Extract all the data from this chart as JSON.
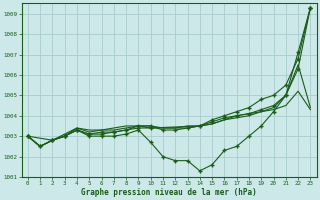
{
  "bg_color": "#cce8e8",
  "grid_color": "#aacccc",
  "line_color": "#1a5c1a",
  "marker_color": "#1a5c1a",
  "xlabel": "Graphe pression niveau de la mer (hPa)",
  "xlabel_color": "#1a5c1a",
  "ylim": [
    1001,
    1009.5
  ],
  "xlim": [
    -0.5,
    23.5
  ],
  "yticks": [
    1001,
    1002,
    1003,
    1004,
    1005,
    1006,
    1007,
    1008,
    1009
  ],
  "xticks": [
    0,
    1,
    2,
    3,
    4,
    5,
    6,
    7,
    8,
    9,
    10,
    11,
    12,
    13,
    14,
    15,
    16,
    17,
    18,
    19,
    20,
    21,
    22,
    23
  ],
  "series": [
    {
      "x": [
        0,
        1,
        2,
        3,
        4,
        5,
        6,
        7,
        8,
        9,
        10,
        11,
        12,
        13,
        14,
        15,
        16,
        17,
        18,
        19,
        20,
        21,
        22,
        23
      ],
      "y": [
        1003.0,
        1002.5,
        1002.8,
        1003.0,
        1003.3,
        1003.0,
        1003.0,
        1003.0,
        1003.1,
        1003.3,
        1002.7,
        1002.0,
        1001.8,
        1001.8,
        1001.3,
        1001.6,
        1002.3,
        1002.5,
        1003.0,
        1003.5,
        1004.2,
        1005.0,
        1007.1,
        1009.3
      ],
      "marker": true
    },
    {
      "x": [
        0,
        1,
        2,
        3,
        4,
        5,
        6,
        7,
        8,
        9,
        10,
        11,
        12,
        13,
        14,
        15,
        16,
        17,
        18,
        19,
        20,
        21,
        22,
        23
      ],
      "y": [
        1003.0,
        1002.5,
        1002.8,
        1003.1,
        1003.4,
        1003.3,
        1003.3,
        1003.4,
        1003.5,
        1003.5,
        1003.4,
        1003.4,
        1003.4,
        1003.5,
        1003.5,
        1003.6,
        1003.8,
        1004.0,
        1004.1,
        1004.2,
        1004.3,
        1004.5,
        1005.2,
        1004.3
      ],
      "marker": false
    },
    {
      "x": [
        0,
        1,
        2,
        3,
        4,
        5,
        6,
        7,
        8,
        9,
        10,
        11,
        12,
        13,
        14,
        15,
        16,
        17,
        18,
        19,
        20,
        21,
        22,
        23
      ],
      "y": [
        1003.0,
        1002.5,
        1002.8,
        1003.0,
        1003.4,
        1003.2,
        1003.3,
        1003.3,
        1003.4,
        1003.5,
        1003.5,
        1003.4,
        1003.4,
        1003.4,
        1003.5,
        1003.6,
        1003.8,
        1003.9,
        1004.0,
        1004.2,
        1004.4,
        1005.0,
        1006.5,
        1004.4
      ],
      "marker": false
    },
    {
      "x": [
        0,
        1,
        2,
        3,
        4,
        5,
        6,
        7,
        8,
        9,
        10,
        11,
        12,
        13,
        14,
        15,
        16,
        17,
        18,
        19,
        20,
        21,
        22,
        23
      ],
      "y": [
        1003.0,
        1002.5,
        1002.8,
        1003.0,
        1003.3,
        1003.1,
        1003.2,
        1003.2,
        1003.3,
        1003.5,
        1003.5,
        1003.3,
        1003.3,
        1003.4,
        1003.5,
        1003.7,
        1003.9,
        1004.0,
        1004.1,
        1004.3,
        1004.5,
        1005.0,
        1006.3,
        1009.3
      ],
      "marker": true
    },
    {
      "x": [
        0,
        2,
        3,
        4,
        5,
        6,
        7,
        8,
        9,
        10,
        14,
        15,
        16,
        17,
        18,
        19,
        20,
        21,
        22,
        23
      ],
      "y": [
        1003.0,
        1002.8,
        1003.0,
        1003.3,
        1003.1,
        1003.1,
        1003.2,
        1003.3,
        1003.4,
        1003.4,
        1003.5,
        1003.8,
        1004.0,
        1004.2,
        1004.4,
        1004.8,
        1005.0,
        1005.5,
        1006.8,
        1009.3
      ],
      "marker": true
    }
  ]
}
